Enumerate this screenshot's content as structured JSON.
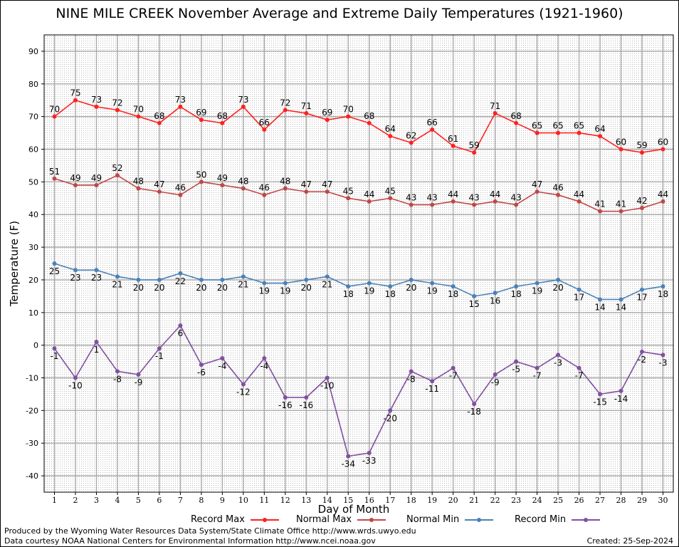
{
  "chart_data": {
    "type": "line",
    "title": "NINE MILE CREEK November Average and Extreme Daily Temperatures (1921-1960)",
    "xlabel": "Day of Month",
    "ylabel": "Temperature (F)",
    "ylim": [
      -45,
      95
    ],
    "yticks": [
      -40,
      -30,
      -20,
      -10,
      0,
      10,
      20,
      30,
      40,
      50,
      60,
      70,
      80,
      90
    ],
    "x": [
      1,
      2,
      3,
      4,
      5,
      6,
      7,
      8,
      9,
      10,
      11,
      12,
      13,
      14,
      15,
      16,
      17,
      18,
      19,
      20,
      21,
      22,
      23,
      24,
      25,
      26,
      27,
      28,
      29,
      30
    ],
    "grid": true,
    "legend_position": "bottom",
    "series": [
      {
        "name": "Record Max",
        "color": "#ff2020",
        "values": [
          70,
          75,
          73,
          72,
          70,
          68,
          73,
          69,
          68,
          73,
          66,
          72,
          71,
          69,
          70,
          68,
          64,
          62,
          66,
          61,
          59,
          71,
          68,
          65,
          65,
          65,
          64,
          60,
          59,
          60
        ]
      },
      {
        "name": "Normal Max",
        "color": "#c04848",
        "values": [
          51,
          49,
          49,
          52,
          48,
          47,
          46,
          50,
          49,
          48,
          46,
          48,
          47,
          47,
          45,
          44,
          45,
          43,
          43,
          44,
          43,
          44,
          43,
          47,
          46,
          44,
          41,
          41,
          42,
          44
        ]
      },
      {
        "name": "Normal Min",
        "color": "#4a82b8",
        "values": [
          25,
          23,
          23,
          21,
          20,
          20,
          22,
          20,
          20,
          21,
          19,
          19,
          20,
          21,
          18,
          19,
          18,
          20,
          19,
          18,
          15,
          16,
          18,
          19,
          20,
          17,
          14,
          14,
          17,
          18
        ]
      },
      {
        "name": "Record Min",
        "color": "#8050a0",
        "values": [
          -1,
          -10,
          1,
          -8,
          -9,
          -1,
          6,
          -6,
          -4,
          -12,
          -4,
          -16,
          -16,
          -10,
          -34,
          -33,
          -20,
          -8,
          -11,
          -7,
          -18,
          -9,
          -5,
          -7,
          -3,
          -7,
          -15,
          -14,
          -2,
          -3
        ]
      }
    ]
  },
  "footer": {
    "produced_by": "Produced by the Wyoming Water Resources Data System/State Climate Office http://www.wrds.uwyo.edu",
    "courtesy": "Data courtesy NOAA National Centers for Environmental Information http://www.ncei.noaa.gov",
    "created": "Created:  25-Sep-2024"
  }
}
